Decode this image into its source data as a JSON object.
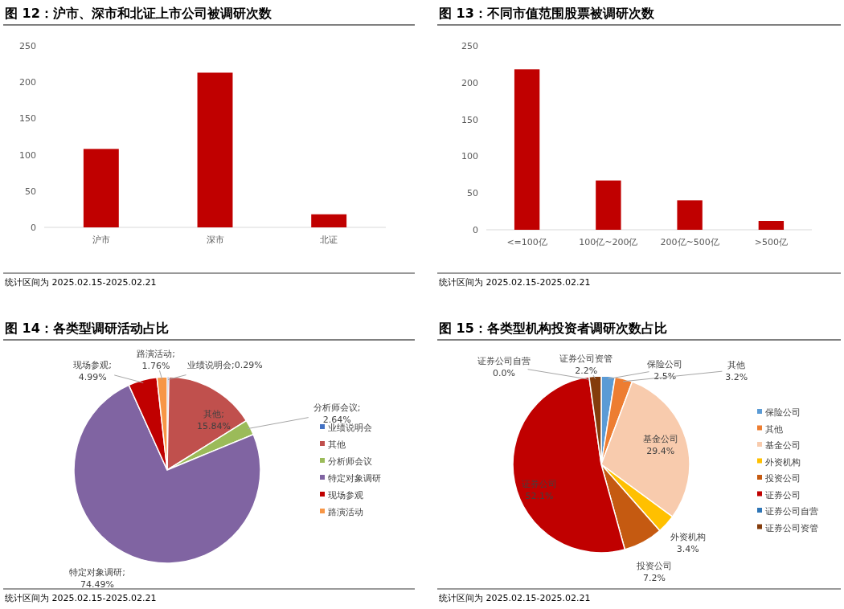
{
  "chart_data": [
    {
      "type": "bar",
      "title": "图 12：沪市、深市和北证上市公司被调研次数",
      "categories": [
        "沪市",
        "深市",
        "北证"
      ],
      "values": [
        108,
        213,
        18
      ],
      "color": "#c00000",
      "ylim": [
        0,
        250
      ],
      "yticks": [
        0,
        50,
        100,
        150,
        200,
        250
      ],
      "grid": false,
      "legend": false,
      "annotations": [
        "统计区间为 2025.02.15-2025.02.21"
      ]
    },
    {
      "type": "bar",
      "title": "图 13：不同市值范围股票被调研次数",
      "categories": [
        "<=100亿",
        "100亿~200亿",
        "200亿~500亿",
        ">500亿"
      ],
      "values": [
        218,
        67,
        40,
        12
      ],
      "color": "#c00000",
      "ylim": [
        0,
        250
      ],
      "yticks": [
        0,
        50,
        100,
        150,
        200,
        250
      ],
      "grid": false,
      "legend": false,
      "annotations": [
        "统计区间为 2025.02.15-2025.02.21"
      ]
    },
    {
      "type": "pie",
      "title": "图 14：各类型调研活动占比",
      "categories": [
        "业绩说明会",
        "其他",
        "分析师会议",
        "特定对象调研",
        "现场参观",
        "路演活动"
      ],
      "values": [
        0.29,
        15.84,
        2.64,
        74.49,
        4.99,
        1.76
      ],
      "colors": [
        "#4472c4",
        "#c0504d",
        "#9bbb59",
        "#8064a2",
        "#c00000",
        "#f79646"
      ],
      "value_labels": [
        "业绩说明会;0.29%",
        "其他; 15.84%",
        "分析师会议; 2.64%",
        "特定对象调研; 74.49%",
        "现场参观; 4.99%",
        "路演活动; 1.76%"
      ],
      "legend": "right",
      "annotations": [
        "统计区间为 2025.02.15-2025.02.21"
      ]
    },
    {
      "type": "pie",
      "title": "图 15：各类型机构投资者调研次数占比",
      "categories": [
        "保险公司",
        "其他",
        "基金公司",
        "外资机构",
        "投资公司",
        "证券公司",
        "证券公司自营",
        "证券公司资管"
      ],
      "values": [
        2.5,
        3.2,
        29.4,
        3.4,
        7.2,
        52.1,
        0.0,
        2.2
      ],
      "colors": [
        "#5b9bd5",
        "#ed7d31",
        "#f8cbad",
        "#ffc000",
        "#c55a11",
        "#c00000",
        "#2e75b6",
        "#843c0c"
      ],
      "value_labels": [
        "保险公司 2.5%",
        "其他 3.2%",
        "基金公司 29.4%",
        "外资机构 3.4%",
        "投资公司 7.2%",
        "证券公司 52.1%",
        "证券公司自营 0.0%",
        "证券公司资管 2.2%"
      ],
      "legend": "right",
      "annotations": [
        "统计区间为 2025.02.15-2025.02.21"
      ]
    }
  ]
}
